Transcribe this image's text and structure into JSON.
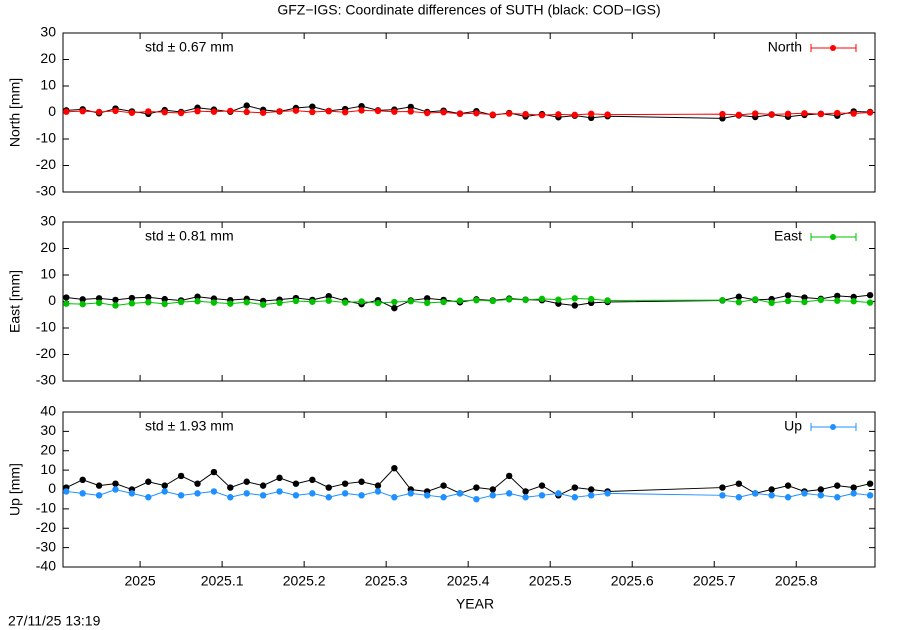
{
  "title": "GFZ−IGS: Coordinate differences of SUTH (black: COD−IGS)",
  "footer": "27/11/25 13:19",
  "chart_data": [
    {
      "type": "scatter",
      "ylabel": "North [mm]",
      "annotation": "std ± 0.67 mm",
      "xlim": [
        2024.906,
        2025.896
      ],
      "xticks": [
        2025,
        2025.1,
        2025.2,
        2025.3,
        2025.4,
        2025.5,
        2025.6,
        2025.7,
        2025.8
      ],
      "ylim": [
        -30,
        30
      ],
      "yticks": [
        -30,
        -20,
        -10,
        0,
        10,
        20,
        30
      ],
      "legend": "top-right",
      "x": [
        2024.91,
        2024.93,
        2024.95,
        2024.97,
        2024.99,
        2025.01,
        2025.03,
        2025.05,
        2025.07,
        2025.09,
        2025.11,
        2025.13,
        2025.15,
        2025.17,
        2025.19,
        2025.21,
        2025.23,
        2025.25,
        2025.27,
        2025.29,
        2025.31,
        2025.33,
        2025.35,
        2025.37,
        2025.39,
        2025.41,
        2025.43,
        2025.45,
        2025.47,
        2025.49,
        2025.51,
        2025.53,
        2025.55,
        2025.57,
        2025.71,
        2025.73,
        2025.75,
        2025.77,
        2025.79,
        2025.81,
        2025.83,
        2025.85,
        2025.87,
        2025.89
      ],
      "series": [
        {
          "color": "#000000",
          "values": [
            0.8,
            1.2,
            -0.3,
            1.5,
            0.4,
            -0.5,
            0.9,
            0.2,
            1.8,
            1.1,
            0.3,
            2.6,
            1.0,
            0.4,
            1.7,
            2.2,
            0.6,
            1.3,
            2.4,
            0.8,
            1.1,
            2.1,
            0.2,
            0.7,
            -0.4,
            0.5,
            -1.0,
            -0.2,
            -1.5,
            -0.6,
            -1.8,
            -1.2,
            -2.0,
            -1.4,
            -2.2,
            -1.1,
            -1.7,
            -0.8,
            -1.6,
            -0.9,
            -0.5,
            -1.2,
            0.4,
            0.2
          ]
        },
        {
          "name": "North",
          "color": "#ff0000",
          "values": [
            0.3,
            0.5,
            0.2,
            0.6,
            -0.1,
            0.4,
            0.1,
            -0.2,
            0.5,
            0.3,
            0.6,
            0.2,
            -0.1,
            0.4,
            0.7,
            0.2,
            0.5,
            0.1,
            0.8,
            0.6,
            0.3,
            0.4,
            -0.2,
            0.1,
            -0.5,
            -0.3,
            -0.8,
            -0.4,
            -0.6,
            -1.0,
            -0.7,
            -0.9,
            -0.5,
            -0.8,
            -0.6,
            -0.9,
            -0.4,
            -0.7,
            -0.5,
            -0.3,
            -0.6,
            -0.2,
            -0.4,
            0.0
          ]
        }
      ]
    },
    {
      "type": "scatter",
      "ylabel": "East [mm]",
      "annotation": "std ± 0.81 mm",
      "xlim": [
        2024.906,
        2025.896
      ],
      "xticks": [
        2025,
        2025.1,
        2025.2,
        2025.3,
        2025.4,
        2025.5,
        2025.6,
        2025.7,
        2025.8
      ],
      "ylim": [
        -30,
        30
      ],
      "yticks": [
        -30,
        -20,
        -10,
        0,
        10,
        20,
        30
      ],
      "legend": "top-right",
      "x": [
        2024.91,
        2024.93,
        2024.95,
        2024.97,
        2024.99,
        2025.01,
        2025.03,
        2025.05,
        2025.07,
        2025.09,
        2025.11,
        2025.13,
        2025.15,
        2025.17,
        2025.19,
        2025.21,
        2025.23,
        2025.25,
        2025.27,
        2025.29,
        2025.31,
        2025.33,
        2025.35,
        2025.37,
        2025.39,
        2025.41,
        2025.43,
        2025.45,
        2025.47,
        2025.49,
        2025.51,
        2025.53,
        2025.55,
        2025.57,
        2025.71,
        2025.73,
        2025.75,
        2025.77,
        2025.79,
        2025.81,
        2025.83,
        2025.85,
        2025.87,
        2025.89
      ],
      "series": [
        {
          "color": "#000000",
          "values": [
            1.5,
            0.8,
            1.2,
            0.6,
            1.3,
            1.6,
            0.9,
            0.4,
            1.8,
            1.1,
            0.5,
            1.0,
            0.2,
            0.7,
            1.3,
            0.6,
            2.0,
            0.3,
            -1.0,
            0.5,
            -2.5,
            0.4,
            1.2,
            0.6,
            -0.3,
            0.8,
            0.4,
            1.1,
            0.7,
            0.5,
            -0.8,
            -1.5,
            -0.5,
            -0.2,
            0.4,
            1.8,
            0.6,
            0.9,
            2.3,
            1.5,
            1.0,
            2.1,
            1.7,
            2.4
          ]
        },
        {
          "name": "East",
          "color": "#00c000",
          "values": [
            -0.8,
            -1.0,
            -0.5,
            -1.5,
            -0.7,
            -0.3,
            -0.9,
            -0.2,
            0.1,
            -0.4,
            -0.8,
            -0.3,
            -1.2,
            -0.5,
            0.2,
            -0.1,
            0.3,
            -0.4,
            0.0,
            -0.6,
            -0.2,
            0.1,
            -0.5,
            -0.2,
            0.3,
            0.5,
            0.2,
            0.8,
            0.6,
            1.0,
            0.7,
            1.2,
            0.9,
            0.4,
            0.5,
            -0.3,
            0.8,
            -0.5,
            0.2,
            -0.2,
            0.6,
            0.3,
            0.1,
            -0.4
          ]
        }
      ]
    },
    {
      "type": "scatter",
      "ylabel": "Up [mm]",
      "xlabel": "YEAR",
      "annotation": "std ± 1.93 mm",
      "xlim": [
        2024.906,
        2025.896
      ],
      "xticks": [
        2025,
        2025.1,
        2025.2,
        2025.3,
        2025.4,
        2025.5,
        2025.6,
        2025.7,
        2025.8
      ],
      "ylim": [
        -40,
        40
      ],
      "yticks": [
        -40,
        -30,
        -20,
        -10,
        0,
        10,
        20,
        30,
        40
      ],
      "legend": "top-right",
      "x": [
        2024.91,
        2024.93,
        2024.95,
        2024.97,
        2024.99,
        2025.01,
        2025.03,
        2025.05,
        2025.07,
        2025.09,
        2025.11,
        2025.13,
        2025.15,
        2025.17,
        2025.19,
        2025.21,
        2025.23,
        2025.25,
        2025.27,
        2025.29,
        2025.31,
        2025.33,
        2025.35,
        2025.37,
        2025.39,
        2025.41,
        2025.43,
        2025.45,
        2025.47,
        2025.49,
        2025.51,
        2025.53,
        2025.55,
        2025.57,
        2025.71,
        2025.73,
        2025.75,
        2025.77,
        2025.79,
        2025.81,
        2025.83,
        2025.85,
        2025.87,
        2025.89
      ],
      "series": [
        {
          "color": "#000000",
          "values": [
            1,
            5,
            2,
            3,
            0,
            4,
            2,
            7,
            3,
            9,
            1,
            4,
            2,
            6,
            3,
            5,
            1,
            3,
            4,
            2,
            11,
            0,
            -1,
            2,
            -2,
            1,
            0,
            7,
            -1,
            2,
            -3,
            1,
            0,
            -1,
            1,
            3,
            -2,
            0,
            2,
            -1,
            0,
            2,
            1,
            3
          ]
        },
        {
          "name": "Up",
          "color": "#1e90ff",
          "values": [
            -1,
            -2,
            -3,
            0,
            -2,
            -4,
            -1,
            -3,
            -2,
            -1,
            -4,
            -2,
            -3,
            -1,
            -3,
            -2,
            -4,
            -2,
            -3,
            -1,
            -4,
            -2,
            -3,
            -4,
            -2,
            -5,
            -3,
            -2,
            -4,
            -3,
            -2,
            -4,
            -3,
            -2,
            -3,
            -4,
            -2,
            -3,
            -4,
            -2,
            -3,
            -4,
            -2,
            -3
          ]
        }
      ]
    }
  ]
}
